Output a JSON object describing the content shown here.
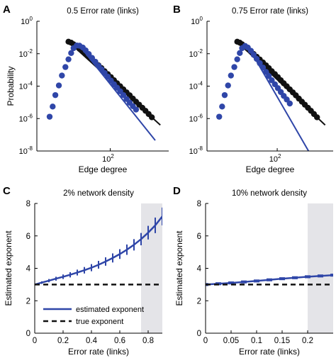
{
  "colors": {
    "blue": "#2f46a8",
    "black": "#111111",
    "shade": "#e4e4e8",
    "axis": "#000000"
  },
  "chart_data": [
    {
      "panel": "A",
      "title": "0.5 Error rate (links)",
      "type": "scatter",
      "xlabel": "Edge degree",
      "ylabel": "Probability",
      "xscale": "log",
      "yscale": "log",
      "xticks": [
        {
          "v": 100,
          "base": "10",
          "exp": "2"
        }
      ],
      "yticks": [
        {
          "v": 1,
          "base": "10",
          "exp": "0"
        },
        {
          "v": 0.01,
          "base": "10",
          "exp": "-2"
        },
        {
          "v": 0.0001,
          "base": "10",
          "exp": "-4"
        },
        {
          "v": 1e-06,
          "base": "10",
          "exp": "-6"
        },
        {
          "v": 1e-08,
          "base": "10",
          "exp": "-8"
        }
      ],
      "xlim": [
        4,
        1300
      ],
      "ylim": [
        1e-08,
        1
      ],
      "series": [
        {
          "key": "black",
          "points": [
            [
              16,
              0.055
            ],
            [
              18,
              0.048
            ],
            [
              20,
              0.038
            ],
            [
              23,
              0.028
            ],
            [
              26,
              0.02
            ],
            [
              30,
              0.014
            ],
            [
              34,
              0.0095
            ],
            [
              39,
              0.0065
            ],
            [
              45,
              0.0044
            ],
            [
              52,
              0.0029
            ],
            [
              60,
              0.0019
            ],
            [
              68,
              0.0013
            ],
            [
              78,
              0.00083
            ],
            [
              90,
              0.00055
            ],
            [
              103,
              0.00036
            ],
            [
              118,
              0.00023
            ],
            [
              135,
              0.00015
            ],
            [
              155,
              9.8e-05
            ],
            [
              178,
              6.3e-05
            ],
            [
              205,
              4.1e-05
            ],
            [
              235,
              2.7e-05
            ],
            [
              270,
              1.7e-05
            ],
            [
              310,
              1.1e-05
            ],
            [
              355,
              7.2e-06
            ],
            [
              410,
              4.6e-06
            ],
            [
              470,
              3e-06
            ],
            [
              540,
              1.9e-06
            ],
            [
              620,
              1.2e-06
            ]
          ],
          "fit": [
            [
              16,
              0.055
            ],
            [
              900,
              4e-07
            ]
          ]
        },
        {
          "key": "blue",
          "points": [
            [
              7,
              1.3e-06
            ],
            [
              8,
              5.5e-06
            ],
            [
              9,
              2.8e-05
            ],
            [
              10.5,
              0.00011
            ],
            [
              12,
              0.00045
            ],
            [
              14,
              0.0015
            ],
            [
              16,
              0.0045
            ],
            [
              18,
              0.011
            ],
            [
              20,
              0.022
            ],
            [
              23,
              0.032
            ],
            [
              26,
              0.031
            ],
            [
              30,
              0.024
            ],
            [
              34,
              0.016
            ],
            [
              39,
              0.0095
            ],
            [
              45,
              0.0055
            ],
            [
              52,
              0.0032
            ],
            [
              60,
              0.0018
            ],
            [
              68,
              0.0011
            ],
            [
              78,
              0.00065
            ],
            [
              90,
              0.00038
            ],
            [
              103,
              0.00022
            ],
            [
              118,
              0.00013
            ],
            [
              135,
              8e-05
            ],
            [
              155,
              4.8e-05
            ],
            [
              178,
              2.8e-05
            ],
            [
              205,
              1.6e-05
            ],
            [
              235,
              9.5e-06
            ],
            [
              270,
              5.8e-06
            ],
            [
              310,
              3.6e-06
            ]
          ],
          "fit": [
            [
              26,
              0.031
            ],
            [
              720,
              4.5e-08
            ]
          ]
        }
      ]
    },
    {
      "panel": "B",
      "title": "0.75 Error rate (links)",
      "type": "scatter",
      "xlabel": "Edge degree",
      "ylabel": "",
      "xscale": "log",
      "yscale": "log",
      "xticks": [
        {
          "v": 100,
          "base": "10",
          "exp": "2"
        }
      ],
      "yticks": [
        {
          "v": 1,
          "base": "10",
          "exp": "0"
        },
        {
          "v": 0.01,
          "base": "10",
          "exp": "-2"
        },
        {
          "v": 0.0001,
          "base": "10",
          "exp": "-4"
        },
        {
          "v": 1e-06,
          "base": "10",
          "exp": "-6"
        },
        {
          "v": 1e-08,
          "base": "10",
          "exp": "-8"
        }
      ],
      "xlim": [
        4,
        1300
      ],
      "ylim": [
        1e-08,
        1
      ],
      "series": [
        {
          "key": "black",
          "points": [
            [
              16,
              0.055
            ],
            [
              18,
              0.048
            ],
            [
              20,
              0.038
            ],
            [
              23,
              0.028
            ],
            [
              26,
              0.02
            ],
            [
              30,
              0.014
            ],
            [
              34,
              0.0095
            ],
            [
              39,
              0.0065
            ],
            [
              45,
              0.0044
            ],
            [
              52,
              0.0029
            ],
            [
              60,
              0.0019
            ],
            [
              68,
              0.0013
            ],
            [
              78,
              0.00083
            ],
            [
              90,
              0.00055
            ],
            [
              103,
              0.00036
            ],
            [
              118,
              0.00023
            ],
            [
              135,
              0.00015
            ],
            [
              155,
              9.8e-05
            ],
            [
              178,
              6.3e-05
            ],
            [
              205,
              4.1e-05
            ],
            [
              235,
              2.7e-05
            ],
            [
              270,
              1.7e-05
            ],
            [
              310,
              1.1e-05
            ],
            [
              355,
              7.2e-06
            ],
            [
              410,
              4.6e-06
            ],
            [
              470,
              3e-06
            ],
            [
              540,
              1.9e-06
            ],
            [
              620,
              1.2e-06
            ]
          ],
          "fit": [
            [
              16,
              0.055
            ],
            [
              900,
              4e-07
            ]
          ]
        },
        {
          "key": "blue",
          "points": [
            [
              7,
              1.3e-06
            ],
            [
              8,
              5.5e-06
            ],
            [
              9,
              2.8e-05
            ],
            [
              10.5,
              0.00011
            ],
            [
              12,
              0.00045
            ],
            [
              14,
              0.0015
            ],
            [
              16,
              0.0045
            ],
            [
              18,
              0.011
            ],
            [
              20,
              0.022
            ],
            [
              23,
              0.03
            ],
            [
              26,
              0.024
            ],
            [
              30,
              0.015
            ],
            [
              34,
              0.0085
            ],
            [
              39,
              0.0048
            ],
            [
              45,
              0.0026
            ],
            [
              52,
              0.0014
            ],
            [
              60,
              0.00075
            ],
            [
              68,
              0.00042
            ],
            [
              78,
              0.00023
            ],
            [
              90,
              0.00013
            ],
            [
              103,
              7.5e-05
            ],
            [
              118,
              4.3e-05
            ],
            [
              135,
              2.5e-05
            ],
            [
              155,
              1.5e-05
            ],
            [
              178,
              8.5e-06
            ]
          ],
          "fit": [
            [
              26,
              0.03
            ],
            [
              420,
              1e-08
            ]
          ]
        }
      ]
    },
    {
      "panel": "C",
      "title": "2% network density",
      "type": "line",
      "xlabel": "Error rate (links)",
      "ylabel": "Estimated exponent",
      "xlim": [
        0,
        0.9
      ],
      "ylim": [
        0,
        8
      ],
      "xticks": [
        "0",
        "0.2",
        "0.4",
        "0.6",
        "0.8"
      ],
      "xtick_values": [
        0,
        0.2,
        0.4,
        0.6,
        0.8
      ],
      "yticks": [
        "0",
        "2",
        "4",
        "6",
        "8"
      ],
      "ytick_values": [
        0,
        2,
        4,
        6,
        8
      ],
      "shade": [
        0.75,
        0.9
      ],
      "series": [
        {
          "name": "estimated exponent",
          "style": "solid",
          "x": [
            0,
            0.05,
            0.1,
            0.15,
            0.2,
            0.25,
            0.3,
            0.35,
            0.4,
            0.45,
            0.5,
            0.55,
            0.6,
            0.65,
            0.7,
            0.75,
            0.8,
            0.85,
            0.9
          ],
          "y": [
            3.0,
            3.12,
            3.24,
            3.36,
            3.48,
            3.6,
            3.74,
            3.88,
            4.04,
            4.22,
            4.42,
            4.64,
            4.88,
            5.15,
            5.45,
            5.8,
            6.2,
            6.65,
            7.2
          ],
          "err": [
            0.05,
            0.08,
            0.1,
            0.12,
            0.14,
            0.16,
            0.18,
            0.2,
            0.22,
            0.24,
            0.26,
            0.28,
            0.3,
            0.32,
            0.35,
            0.38,
            0.42,
            0.48,
            0.55
          ]
        },
        {
          "name": "true exponent",
          "style": "dashed",
          "x": [
            0,
            0.9
          ],
          "y": [
            3,
            3
          ]
        }
      ],
      "legend": {
        "placement": "bottom-left",
        "entries": [
          "estimated exponent",
          "true exponent"
        ]
      }
    },
    {
      "panel": "D",
      "title": "10% network density",
      "type": "line",
      "xlabel": "Error rate (links)",
      "ylabel": "Estimated exponent",
      "xlim": [
        0,
        0.25
      ],
      "ylim": [
        0,
        8
      ],
      "xticks": [
        "0",
        "0.05",
        "0.1",
        "0.15",
        "0.2"
      ],
      "xtick_values": [
        0,
        0.05,
        0.1,
        0.15,
        0.2
      ],
      "yticks": [
        "0",
        "2",
        "4",
        "6",
        "8"
      ],
      "ytick_values": [
        0,
        2,
        4,
        6,
        8
      ],
      "shade": [
        0.2,
        0.25
      ],
      "series": [
        {
          "name": "estimated exponent",
          "style": "solid",
          "x": [
            0,
            0.025,
            0.05,
            0.075,
            0.1,
            0.125,
            0.15,
            0.175,
            0.2,
            0.225,
            0.25
          ],
          "y": [
            3.0,
            3.05,
            3.1,
            3.16,
            3.22,
            3.29,
            3.36,
            3.42,
            3.48,
            3.53,
            3.58
          ],
          "err": [
            0.05,
            0.05,
            0.05,
            0.05,
            0.05,
            0.05,
            0.05,
            0.05,
            0.05,
            0.05,
            0.05
          ]
        },
        {
          "name": "true exponent",
          "style": "dashed",
          "x": [
            0,
            0.25
          ],
          "y": [
            3,
            3
          ]
        }
      ]
    }
  ]
}
